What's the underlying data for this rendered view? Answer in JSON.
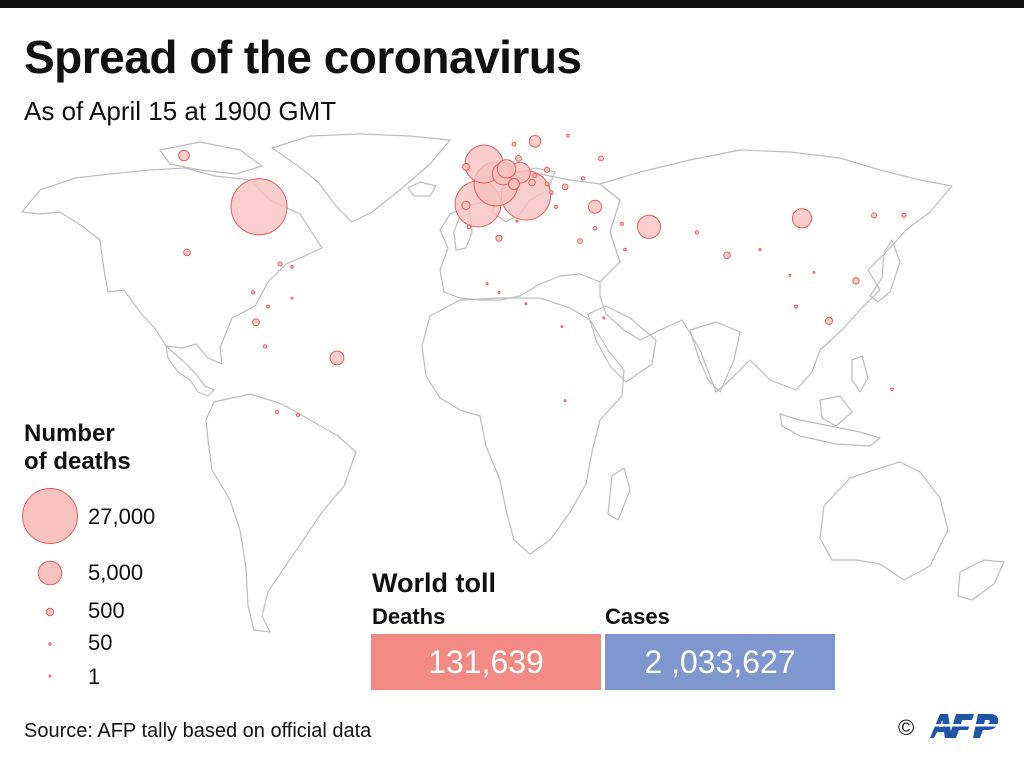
{
  "header": {
    "title": "Spread of the coronavirus",
    "subtitle": "As of April 15 at 1900 GMT"
  },
  "colors": {
    "bubble_fill": "#f7c2bf",
    "bubble_stroke": "#e8605a",
    "land_stroke": "#bdbdbd",
    "deaths_box": "#f28983",
    "cases_box": "#7f96cf"
  },
  "legend": {
    "title_line1": "Number",
    "title_line2": "of deaths",
    "items": [
      {
        "label": "27,000",
        "value": 27000
      },
      {
        "label": "5,000",
        "value": 5000
      },
      {
        "label": "500",
        "value": 500
      },
      {
        "label": "50",
        "value": 50
      },
      {
        "label": "1",
        "value": 1
      }
    ]
  },
  "world_toll": {
    "title": "World toll",
    "deaths_label": "Deaths",
    "deaths_value": "131,639",
    "cases_label": "Cases",
    "cases_value": "2 ,033,627"
  },
  "footer": {
    "source": "Source: AFP tally based on official data",
    "copyright": "©",
    "logo_icon": "afp-logo-icon"
  },
  "map_bubbles": [
    {
      "lon": -77,
      "lat": 39,
      "deaths": 28000
    },
    {
      "lon": -102,
      "lat": 57,
      "deaths": 1000
    },
    {
      "lon": -101,
      "lat": 23,
      "deaths": 400
    },
    {
      "lon": -51,
      "lat": -14,
      "deaths": 1700
    },
    {
      "lon": -78,
      "lat": -1.5,
      "deaths": 420
    },
    {
      "lon": -75,
      "lat": -10,
      "deaths": 100
    },
    {
      "lon": -64,
      "lat": -34,
      "deaths": 90
    },
    {
      "lon": -71,
      "lat": -33,
      "deaths": 90
    },
    {
      "lon": -74,
      "lat": 4,
      "deaths": 80
    },
    {
      "lon": -66,
      "lat": 7,
      "deaths": 10
    },
    {
      "lon": -70,
      "lat": 19,
      "deaths": 150
    },
    {
      "lon": -66,
      "lat": 18,
      "deaths": 50
    },
    {
      "lon": -79,
      "lat": 9,
      "deaths": 90
    },
    {
      "lon": 12,
      "lat": 43,
      "deaths": 21600
    },
    {
      "lon": -4,
      "lat": 40,
      "deaths": 18800
    },
    {
      "lon": 2,
      "lat": 47,
      "deaths": 17200
    },
    {
      "lon": -2,
      "lat": 54,
      "deaths": 12900
    },
    {
      "lon": 4.5,
      "lat": 50.6,
      "deaths": 4400
    },
    {
      "lon": 5.5,
      "lat": 52.3,
      "deaths": 3000
    },
    {
      "lon": 10,
      "lat": 51,
      "deaths": 3800
    },
    {
      "lon": 8,
      "lat": 47,
      "deaths": 1100
    },
    {
      "lon": 15,
      "lat": 62,
      "deaths": 1200
    },
    {
      "lon": -8,
      "lat": 39.5,
      "deaths": 600
    },
    {
      "lon": -8,
      "lat": 53,
      "deaths": 450
    },
    {
      "lon": 14,
      "lat": 47.5,
      "deaths": 390
    },
    {
      "lon": 9.5,
      "lat": 56,
      "deaths": 300
    },
    {
      "lon": 8,
      "lat": 61,
      "deaths": 130
    },
    {
      "lon": 26,
      "lat": 64,
      "deaths": 60
    },
    {
      "lon": 19,
      "lat": 52,
      "deaths": 250
    },
    {
      "lon": 15,
      "lat": 50,
      "deaths": 150
    },
    {
      "lon": 19,
      "lat": 47,
      "deaths": 130
    },
    {
      "lon": 25,
      "lat": 46,
      "deaths": 300
    },
    {
      "lon": 22,
      "lat": 39,
      "deaths": 100
    },
    {
      "lon": 20.5,
      "lat": 44,
      "deaths": 100
    },
    {
      "lon": 37,
      "lat": 56,
      "deaths": 200
    },
    {
      "lon": 31,
      "lat": 49,
      "deaths": 100
    },
    {
      "lon": 35,
      "lat": 39,
      "deaths": 1500
    },
    {
      "lon": 53,
      "lat": 32,
      "deaths": 4800
    },
    {
      "lon": 44,
      "lat": 33,
      "deaths": 80
    },
    {
      "lon": 35,
      "lat": 31.5,
      "deaths": 120
    },
    {
      "lon": 45,
      "lat": 24,
      "deaths": 60
    },
    {
      "lon": 30,
      "lat": 27,
      "deaths": 200
    },
    {
      "lon": 3,
      "lat": 28,
      "deaths": 350
    },
    {
      "lon": -7,
      "lat": 32,
      "deaths": 130
    },
    {
      "lon": 9,
      "lat": 34,
      "deaths": 30
    },
    {
      "lon": 69,
      "lat": 30,
      "deaths": 100
    },
    {
      "lon": 79,
      "lat": 22,
      "deaths": 400
    },
    {
      "lon": 104,
      "lat": 35,
      "deaths": 3300
    },
    {
      "lon": 128,
      "lat": 36,
      "deaths": 230
    },
    {
      "lon": 138,
      "lat": 36,
      "deaths": 150
    },
    {
      "lon": 122,
      "lat": 13,
      "deaths": 360
    },
    {
      "lon": 113,
      "lat": -1,
      "deaths": 470
    },
    {
      "lon": 102,
      "lat": 4,
      "deaths": 80
    },
    {
      "lon": 134,
      "lat": -25,
      "deaths": 60
    },
    {
      "lon": 3,
      "lat": 9,
      "deaths": 10
    },
    {
      "lon": 12,
      "lat": 5,
      "deaths": 10
    },
    {
      "lon": -1,
      "lat": 12,
      "deaths": 30
    },
    {
      "lon": 25,
      "lat": -29,
      "deaths": 30
    },
    {
      "lon": 38,
      "lat": 0,
      "deaths": 10
    },
    {
      "lon": 24,
      "lat": -3,
      "deaths": 10
    },
    {
      "lon": 100,
      "lat": 15,
      "deaths": 30
    },
    {
      "lon": 108,
      "lat": 16,
      "deaths": 1
    },
    {
      "lon": 90,
      "lat": 24,
      "deaths": 40
    }
  ]
}
